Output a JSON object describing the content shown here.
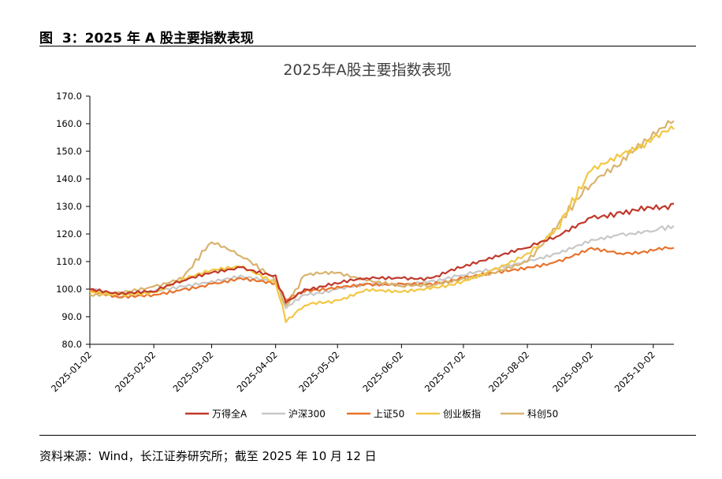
{
  "figure_caption": "图  3：2025 年 A 股主要指数表现",
  "source": "资料来源：Wind，长江证券研究所；截至 2025 年 10 月 12 日",
  "chart_data": {
    "type": "line",
    "title": "2025年A股主要指数表现",
    "xlabel": "",
    "ylabel": "",
    "ylim": [
      80,
      170
    ],
    "yticks": [
      "80.0",
      "90.0",
      "100.0",
      "110.0",
      "120.0",
      "130.0",
      "140.0",
      "150.0",
      "160.0",
      "170.0"
    ],
    "x": [
      "2025-01-02",
      "2025-01-16",
      "2025-02-02",
      "2025-02-16",
      "2025-03-02",
      "2025-03-16",
      "2025-04-02",
      "2025-04-07",
      "2025-04-16",
      "2025-05-02",
      "2025-05-16",
      "2025-06-02",
      "2025-06-16",
      "2025-07-02",
      "2025-07-16",
      "2025-08-02",
      "2025-08-16",
      "2025-09-02",
      "2025-09-16",
      "2025-10-02",
      "2025-10-12"
    ],
    "xticks": [
      "2025-01-02",
      "2025-02-02",
      "2025-03-02",
      "2025-04-02",
      "2025-05-02",
      "2025-06-02",
      "2025-07-02",
      "2025-08-02",
      "2025-09-02",
      "2025-10-02"
    ],
    "grid": false,
    "legend_position": "bottom",
    "series": [
      {
        "name": "万得全A",
        "color": "#c0392b",
        "values": [
          100,
          98,
          99,
          103,
          106,
          108,
          105,
          95,
          100,
          102,
          104,
          104,
          104,
          108,
          111,
          115,
          119,
          126,
          128,
          129,
          131
        ]
      },
      {
        "name": "沪深300",
        "color": "#c8c8c8",
        "values": [
          100,
          97,
          99,
          101,
          103,
          105,
          103,
          93,
          98,
          100,
          102,
          102,
          103,
          105,
          107,
          110,
          113,
          118,
          120,
          121,
          123
        ]
      },
      {
        "name": "上证50",
        "color": "#e8732c",
        "values": [
          99,
          97,
          98,
          100,
          102,
          104,
          102,
          96,
          99,
          101,
          102,
          102,
          102,
          104,
          106,
          108,
          110,
          115,
          113,
          114,
          115
        ]
      },
      {
        "name": "创业板指",
        "color": "#f2c744",
        "values": [
          99,
          98,
          99,
          104,
          107,
          108,
          102,
          88,
          94,
          96,
          100,
          99,
          100,
          103,
          107,
          113,
          122,
          143,
          148,
          155,
          158
        ]
      },
      {
        "name": "科创50",
        "color": "#d9b36e",
        "values": [
          98,
          99,
          101,
          104,
          117,
          112,
          103,
          94,
          105,
          106,
          103,
          101,
          101,
          104,
          106,
          110,
          122,
          138,
          145,
          157,
          161
        ]
      }
    ]
  }
}
